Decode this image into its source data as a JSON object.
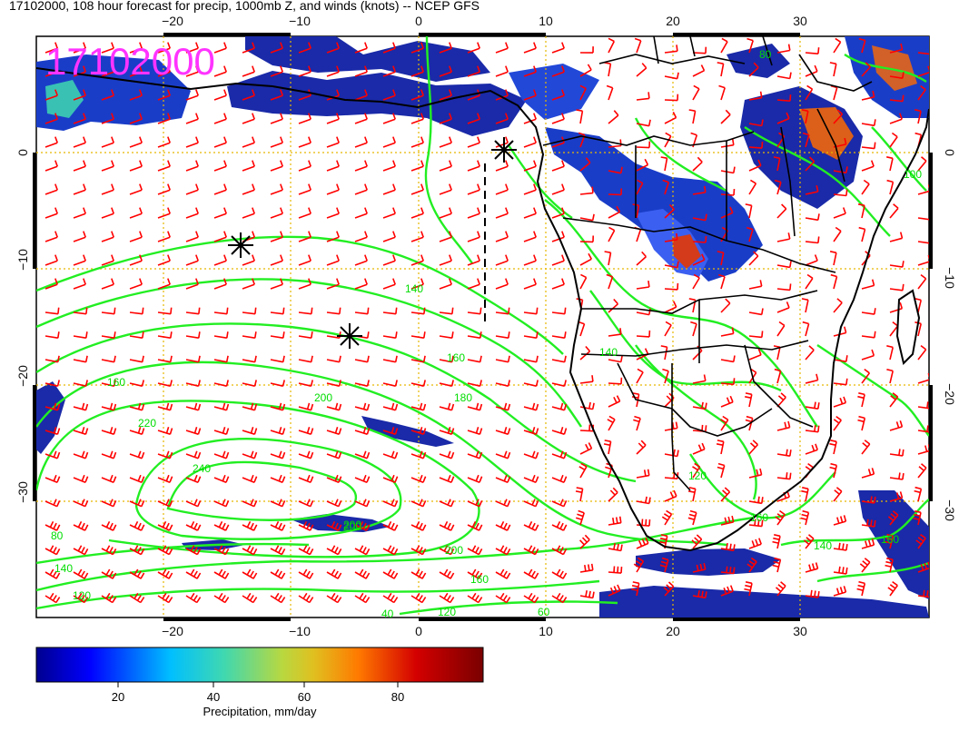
{
  "title": "17102000, 108 hour forecast for precip, 1000mb Z, and winds (knots) -- NCEP GFS",
  "stamp": "17102000",
  "axes": {
    "lon_ticks": [
      "−20",
      "−10",
      "0",
      "10",
      "20",
      "30"
    ],
    "lat_ticks": [
      "0",
      "−10",
      "−20",
      "−30"
    ]
  },
  "contour_labels": [
    "80",
    "120",
    "140",
    "160",
    "180",
    "200",
    "220",
    "240",
    "160",
    "200",
    "140",
    "120",
    "160",
    "200",
    "160",
    "140",
    "120",
    "160",
    "140",
    "80",
    "100",
    "40",
    "60",
    "200"
  ],
  "colorbar": {
    "label": "Precipitation, mm/day",
    "ticks": [
      "20",
      "40",
      "60",
      "80"
    ],
    "range": [
      0,
      100
    ]
  },
  "colors": {
    "barbs": "#ff0000",
    "contours": "#22ee22",
    "coast": "#000000",
    "grid": "#e6b800",
    "stamp": "#ff33ff",
    "precip_low": "#0a1a9a",
    "precip_high": "#7a0000"
  },
  "map": {
    "lon_range": [
      -30,
      40
    ],
    "lat_range": [
      -40,
      10
    ],
    "lon_step": 10,
    "lat_step": 10,
    "wind_units": "knots",
    "height_level": "1000mb",
    "storm_markers": 3
  }
}
